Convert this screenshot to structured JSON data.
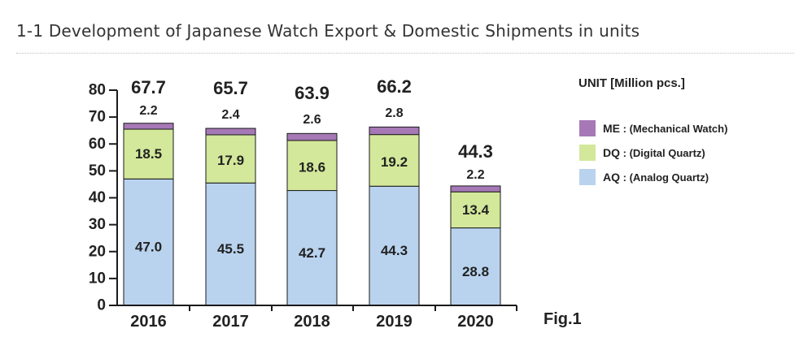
{
  "page": {
    "title": "1-1 Development of Japanese Watch Export & Domestic Shipments in units"
  },
  "chart_data": {
    "type": "bar",
    "stacked": true,
    "categories": [
      "2016",
      "2017",
      "2018",
      "2019",
      "2020"
    ],
    "totals": [
      67.7,
      65.7,
      63.9,
      66.2,
      44.3
    ],
    "series": [
      {
        "name": "AQ : (Analog Quartz)",
        "abbr": "AQ",
        "desc": "(Analog Quartz)",
        "values": [
          47.0,
          45.5,
          42.7,
          44.3,
          28.8
        ],
        "labels": [
          "47.0",
          "45.5",
          "42.7",
          "44.3",
          "28.8"
        ],
        "color": "#b9d3ef"
      },
      {
        "name": "DQ : (Digital Quartz)",
        "abbr": "DQ",
        "desc": "(Digital Quartz)",
        "values": [
          18.5,
          17.9,
          18.6,
          19.2,
          13.4
        ],
        "labels": [
          "18.5",
          "17.9",
          "18.6",
          "19.2",
          "13.4"
        ],
        "color": "#d3e89a"
      },
      {
        "name": "ME : (Mechanical Watch)",
        "abbr": "ME",
        "desc": "(Mechanical Watch)",
        "values": [
          2.2,
          2.4,
          2.6,
          2.8,
          2.2
        ],
        "labels": [
          "2.2",
          "2.4",
          "2.6",
          "2.8",
          "2.2"
        ],
        "color": "#a678b6"
      }
    ],
    "total_labels": [
      "67.7",
      "65.7",
      "63.9",
      "66.2",
      "44.3"
    ],
    "yticks": [
      "0",
      "10",
      "20",
      "30",
      "40",
      "50",
      "60",
      "70",
      "80"
    ],
    "ylim": [
      0,
      80
    ],
    "unit_label": "UNIT [Million pcs.]",
    "figure_label": "Fig.1",
    "legend_position": "right",
    "grid": false
  }
}
